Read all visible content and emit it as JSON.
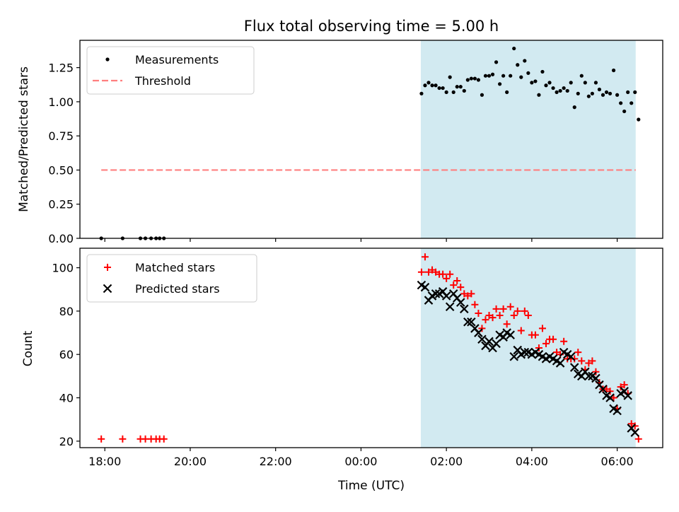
{
  "chart_data": [
    {
      "type": "scatter",
      "title": "Flux total observing time = 5.00 h",
      "xlabel": "",
      "ylabel": "Matched/Predicted stars",
      "xlim": [
        "17:25",
        "07:04"
      ],
      "ylim": [
        0,
        1.45
      ],
      "xticks": [
        "18:00",
        "20:00",
        "22:00",
        "00:00",
        "02:00",
        "04:00",
        "06:00"
      ],
      "yticks": [
        0.0,
        0.25,
        0.5,
        0.75,
        1.0,
        1.25
      ],
      "ytick_labels": [
        "0.00",
        "0.25",
        "0.50",
        "0.75",
        "1.00",
        "1.25"
      ],
      "shaded_span": [
        "01:24",
        "06:26"
      ],
      "shade_color": "#add8e6",
      "grid": false,
      "legend_position": "upper-left",
      "legend": [
        "Measurements",
        "Threshold"
      ],
      "series": [
        {
          "name": "Measurements",
          "marker": "dot",
          "color": "#000000",
          "points": [
            [
              "17:55",
              0.0
            ],
            [
              "18:25",
              0.0
            ],
            [
              "18:50",
              0.0
            ],
            [
              "18:57",
              0.0
            ],
            [
              "19:05",
              0.0
            ],
            [
              "19:12",
              0.0
            ],
            [
              "19:17",
              0.0
            ],
            [
              "19:23",
              0.0
            ],
            [
              "01:25",
              1.06
            ],
            [
              "01:30",
              1.12
            ],
            [
              "01:35",
              1.14
            ],
            [
              "01:40",
              1.12
            ],
            [
              "01:45",
              1.12
            ],
            [
              "01:50",
              1.1
            ],
            [
              "01:55",
              1.1
            ],
            [
              "02:00",
              1.07
            ],
            [
              "02:05",
              1.18
            ],
            [
              "02:10",
              1.07
            ],
            [
              "02:15",
              1.11
            ],
            [
              "02:20",
              1.11
            ],
            [
              "02:25",
              1.08
            ],
            [
              "02:30",
              1.16
            ],
            [
              "02:35",
              1.17
            ],
            [
              "02:40",
              1.17
            ],
            [
              "02:45",
              1.16
            ],
            [
              "02:50",
              1.05
            ],
            [
              "02:55",
              1.19
            ],
            [
              "03:00",
              1.19
            ],
            [
              "03:05",
              1.2
            ],
            [
              "03:10",
              1.29
            ],
            [
              "03:15",
              1.13
            ],
            [
              "03:20",
              1.19
            ],
            [
              "03:25",
              1.07
            ],
            [
              "03:30",
              1.19
            ],
            [
              "03:35",
              1.39
            ],
            [
              "03:40",
              1.27
            ],
            [
              "03:45",
              1.18
            ],
            [
              "03:50",
              1.3
            ],
            [
              "03:55",
              1.21
            ],
            [
              "04:00",
              1.14
            ],
            [
              "04:05",
              1.15
            ],
            [
              "04:10",
              1.05
            ],
            [
              "04:15",
              1.22
            ],
            [
              "04:20",
              1.12
            ],
            [
              "04:25",
              1.14
            ],
            [
              "04:30",
              1.1
            ],
            [
              "04:35",
              1.07
            ],
            [
              "04:40",
              1.08
            ],
            [
              "04:45",
              1.1
            ],
            [
              "04:50",
              1.08
            ],
            [
              "04:55",
              1.14
            ],
            [
              "05:00",
              0.96
            ],
            [
              "05:05",
              1.06
            ],
            [
              "05:10",
              1.19
            ],
            [
              "05:15",
              1.14
            ],
            [
              "05:20",
              1.04
            ],
            [
              "05:25",
              1.06
            ],
            [
              "05:30",
              1.14
            ],
            [
              "05:35",
              1.09
            ],
            [
              "05:40",
              1.05
            ],
            [
              "05:45",
              1.07
            ],
            [
              "05:50",
              1.06
            ],
            [
              "05:55",
              1.23
            ],
            [
              "06:00",
              1.05
            ],
            [
              "06:05",
              0.99
            ],
            [
              "06:10",
              0.93
            ],
            [
              "06:15",
              1.07
            ],
            [
              "06:20",
              0.99
            ],
            [
              "06:25",
              1.07
            ],
            [
              "06:30",
              0.87
            ]
          ]
        },
        {
          "name": "Threshold",
          "marker": "dashed-line",
          "color": "#ff7f7f",
          "points": [
            [
              "17:55",
              0.5
            ],
            [
              "06:26",
              0.5
            ]
          ]
        }
      ]
    },
    {
      "type": "scatter",
      "title": "",
      "xlabel": "Time (UTC)",
      "ylabel": "Count",
      "xlim": [
        "17:25",
        "07:04"
      ],
      "ylim": [
        17,
        109
      ],
      "xticks": [
        "18:00",
        "20:00",
        "22:00",
        "00:00",
        "02:00",
        "04:00",
        "06:00"
      ],
      "yticks": [
        20,
        40,
        60,
        80,
        100
      ],
      "ytick_labels": [
        "20",
        "40",
        "60",
        "80",
        "100"
      ],
      "shaded_span": [
        "01:24",
        "06:26"
      ],
      "shade_color": "#add8e6",
      "grid": false,
      "legend_position": "upper-left",
      "legend": [
        "Matched stars",
        "Predicted stars"
      ],
      "series": [
        {
          "name": "Matched stars",
          "marker": "plus",
          "color": "#ff0000",
          "points": [
            [
              "17:55",
              21
            ],
            [
              "18:25",
              21
            ],
            [
              "18:50",
              21
            ],
            [
              "18:57",
              21
            ],
            [
              "19:05",
              21
            ],
            [
              "19:12",
              21
            ],
            [
              "19:17",
              21
            ],
            [
              "19:23",
              21
            ],
            [
              "01:25",
              98
            ],
            [
              "01:30",
              105
            ],
            [
              "01:35",
              98
            ],
            [
              "01:40",
              99
            ],
            [
              "01:45",
              98
            ],
            [
              "01:50",
              97
            ],
            [
              "01:55",
              97
            ],
            [
              "02:00",
              95
            ],
            [
              "02:05",
              97
            ],
            [
              "02:10",
              92
            ],
            [
              "02:15",
              94
            ],
            [
              "02:20",
              91
            ],
            [
              "02:25",
              88
            ],
            [
              "02:30",
              87
            ],
            [
              "02:35",
              88
            ],
            [
              "02:40",
              83
            ],
            [
              "02:45",
              79
            ],
            [
              "02:50",
              72
            ],
            [
              "02:55",
              76
            ],
            [
              "03:00",
              78
            ],
            [
              "03:05",
              77
            ],
            [
              "03:10",
              81
            ],
            [
              "03:15",
              78
            ],
            [
              "03:20",
              81
            ],
            [
              "03:25",
              74
            ],
            [
              "03:30",
              82
            ],
            [
              "03:35",
              78
            ],
            [
              "03:40",
              80
            ],
            [
              "03:45",
              71
            ],
            [
              "03:50",
              80
            ],
            [
              "03:55",
              78
            ],
            [
              "04:00",
              69
            ],
            [
              "04:05",
              69
            ],
            [
              "04:10",
              63
            ],
            [
              "04:15",
              72
            ],
            [
              "04:20",
              65
            ],
            [
              "04:25",
              67
            ],
            [
              "04:30",
              67
            ],
            [
              "04:35",
              61
            ],
            [
              "04:40",
              60
            ],
            [
              "04:45",
              66
            ],
            [
              "04:50",
              58
            ],
            [
              "04:55",
              58
            ],
            [
              "05:00",
              58
            ],
            [
              "05:05",
              61
            ],
            [
              "05:10",
              57
            ],
            [
              "05:15",
              53
            ],
            [
              "05:20",
              56
            ],
            [
              "05:25",
              57
            ],
            [
              "05:30",
              52
            ],
            [
              "05:35",
              47
            ],
            [
              "05:40",
              44
            ],
            [
              "05:45",
              44
            ],
            [
              "05:50",
              43
            ],
            [
              "05:55",
              40
            ],
            [
              "06:00",
              35
            ],
            [
              "06:05",
              45
            ],
            [
              "06:10",
              46
            ],
            [
              "06:15",
              42
            ],
            [
              "06:20",
              28
            ],
            [
              "06:25",
              27
            ],
            [
              "06:30",
              21
            ]
          ]
        },
        {
          "name": "Predicted stars",
          "marker": "x",
          "color": "#000000",
          "points": [
            [
              "01:25",
              92
            ],
            [
              "01:30",
              91
            ],
            [
              "01:35",
              85
            ],
            [
              "01:40",
              87
            ],
            [
              "01:45",
              88
            ],
            [
              "01:50",
              88
            ],
            [
              "01:55",
              89
            ],
            [
              "02:00",
              87
            ],
            [
              "02:05",
              82
            ],
            [
              "02:10",
              88
            ],
            [
              "02:15",
              86
            ],
            [
              "02:20",
              84
            ],
            [
              "02:25",
              81
            ],
            [
              "02:30",
              75
            ],
            [
              "02:35",
              75
            ],
            [
              "02:40",
              72
            ],
            [
              "02:45",
              70
            ],
            [
              "02:50",
              67
            ],
            [
              "02:55",
              64
            ],
            [
              "03:00",
              66
            ],
            [
              "03:05",
              63
            ],
            [
              "03:10",
              65
            ],
            [
              "03:15",
              69
            ],
            [
              "03:20",
              68
            ],
            [
              "03:25",
              70
            ],
            [
              "03:30",
              69
            ],
            [
              "03:35",
              59
            ],
            [
              "03:40",
              62
            ],
            [
              "03:45",
              60
            ],
            [
              "03:50",
              61
            ],
            [
              "03:55",
              61
            ],
            [
              "04:00",
              60
            ],
            [
              "04:05",
              61
            ],
            [
              "04:10",
              60
            ],
            [
              "04:15",
              59
            ],
            [
              "04:20",
              58
            ],
            [
              "04:25",
              59
            ],
            [
              "04:30",
              58
            ],
            [
              "04:35",
              57
            ],
            [
              "04:40",
              56
            ],
            [
              "04:45",
              61
            ],
            [
              "04:50",
              60
            ],
            [
              "04:55",
              59
            ],
            [
              "05:00",
              54
            ],
            [
              "05:05",
              51
            ],
            [
              "05:10",
              50
            ],
            [
              "05:15",
              52
            ],
            [
              "05:20",
              50
            ],
            [
              "05:25",
              50
            ],
            [
              "05:30",
              49
            ],
            [
              "05:35",
              46
            ],
            [
              "05:40",
              44
            ],
            [
              "05:45",
              41
            ],
            [
              "05:50",
              40
            ],
            [
              "05:55",
              35
            ],
            [
              "06:00",
              34
            ],
            [
              "06:05",
              42
            ],
            [
              "06:10",
              43
            ],
            [
              "06:15",
              41
            ],
            [
              "06:20",
              26
            ],
            [
              "06:25",
              24
            ]
          ]
        }
      ]
    }
  ]
}
